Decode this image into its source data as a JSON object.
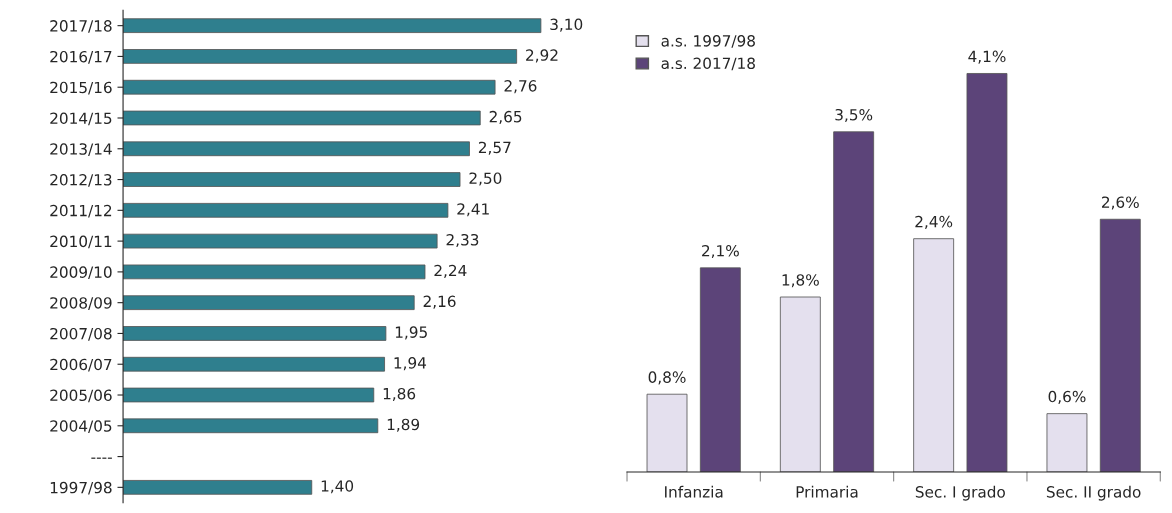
{
  "chart_data": [
    {
      "type": "bar",
      "orientation": "horizontal",
      "categories": [
        "2017/18",
        "2016/17",
        "2015/16",
        "2014/15",
        "2013/14",
        "2012/13",
        "2011/12",
        "2010/11",
        "2009/10",
        "2008/09",
        "2007/08",
        "2006/07",
        "2005/06",
        "2004/05",
        "----",
        "1997/98"
      ],
      "values": [
        3.1,
        2.92,
        2.76,
        2.65,
        2.57,
        2.5,
        2.41,
        2.33,
        2.24,
        2.16,
        1.95,
        1.94,
        1.86,
        1.89,
        null,
        1.4
      ],
      "value_labels": [
        "3,10",
        "2,92",
        "2,76",
        "2,65",
        "2,57",
        "2,50",
        "2,41",
        "2,33",
        "2,24",
        "2,16",
        "1,95",
        "1,94",
        "1,86",
        "1,89",
        null,
        "1,40"
      ],
      "color": "#2f7f8e",
      "grid": false,
      "legend": false
    },
    {
      "type": "bar",
      "categories": [
        "Infanzia",
        "Primaria",
        "Sec. I grado",
        "Sec. II grado"
      ],
      "series": [
        {
          "name": "a.s. 1997/98",
          "color": "#e4e0ee",
          "values": [
            0.8,
            1.8,
            2.4,
            0.6
          ],
          "value_labels": [
            "0,8%",
            "1,8%",
            "2,4%",
            "0,6%"
          ]
        },
        {
          "name": "a.s. 2017/18",
          "color": "#5c4479",
          "values": [
            2.1,
            3.5,
            4.1,
            2.6
          ],
          "value_labels": [
            "2,1%",
            "3,5%",
            "4,1%",
            "2,6%"
          ]
        }
      ],
      "grid": false,
      "legend": "top left"
    }
  ]
}
